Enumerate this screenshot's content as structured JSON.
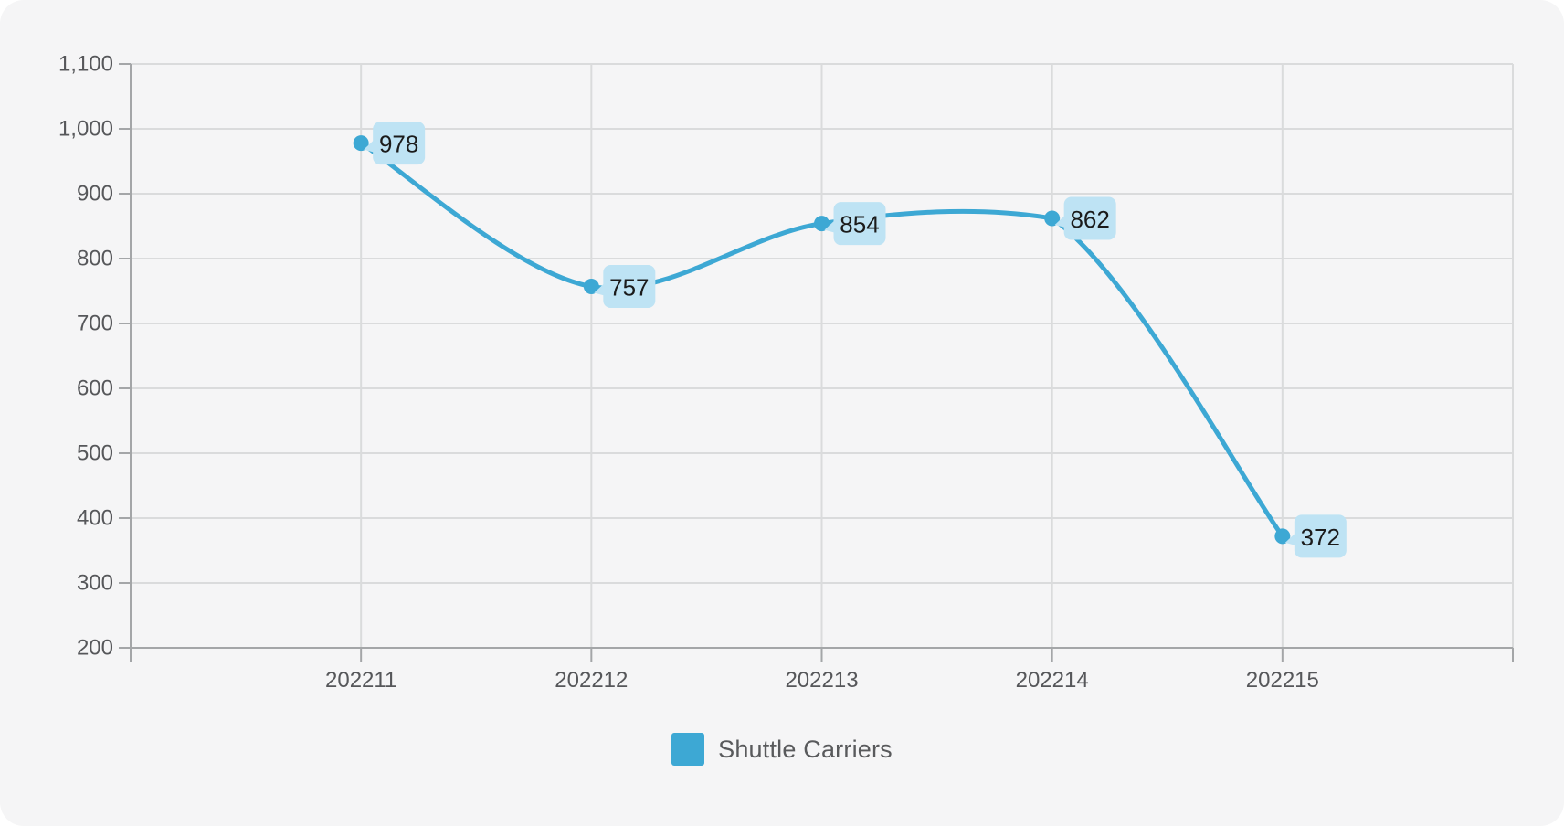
{
  "chart_data": {
    "type": "line",
    "smooth": true,
    "title": "",
    "x_categories": [
      "202211",
      "202212",
      "202213",
      "202214",
      "202215"
    ],
    "series": [
      {
        "name": "Shuttle Carriers",
        "color": "#3da8d4",
        "values": [
          978,
          757,
          854,
          862,
          372
        ]
      }
    ],
    "y_axis": {
      "min": 200,
      "max": 1100,
      "step": 100,
      "tick_labels": [
        "200",
        "300",
        "400",
        "500",
        "600",
        "700",
        "800",
        "900",
        "1,000",
        "1,100"
      ]
    },
    "data_labels": {
      "visible": true,
      "values": [
        "978",
        "757",
        "854",
        "862",
        "372"
      ],
      "bg_color": "#bee3f4",
      "text_color": "#1b1b1b"
    },
    "legend": {
      "position": "bottom",
      "entries": [
        "Shuttle Carriers"
      ]
    },
    "grid": {
      "show": true,
      "line_color": "#dadbdc",
      "axis_color": "#a4a6a8"
    }
  },
  "page": {
    "background": "#ffffff",
    "card_background": "#f5f5f6",
    "axis_label_color": "#56575a",
    "legend_text_color": "#595a5c"
  }
}
